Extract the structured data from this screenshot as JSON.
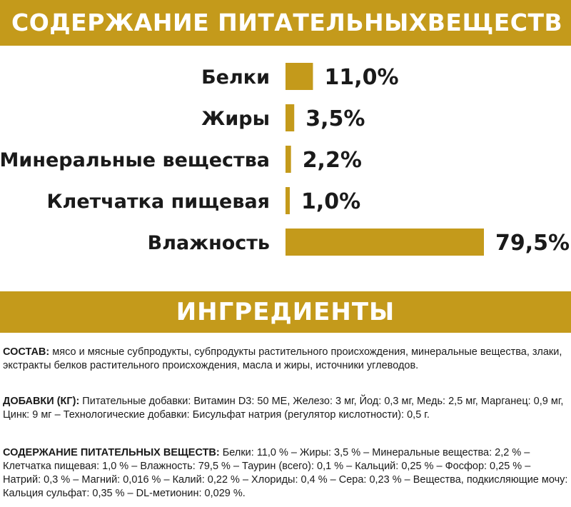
{
  "header": {
    "title": "СОДЕРЖАНИЕ ПИТАТЕЛЬНЫХВЕЩЕСТВ"
  },
  "chart_data": {
    "type": "bar",
    "orientation": "horizontal",
    "categories": [
      "Белки",
      "Жиры",
      "Минеральные вещества",
      "Клетчатка пищевая",
      "Влажность"
    ],
    "values": [
      11.0,
      3.5,
      2.2,
      1.0,
      79.5
    ],
    "value_labels": [
      "11,0%",
      "3,5%",
      "2,2%",
      "1,0%",
      "79,5%"
    ],
    "unit": "%",
    "bar_color": "#c49a1b",
    "title": "",
    "xlabel": "",
    "ylabel": "",
    "grid": false,
    "legend": "none"
  },
  "ingredients": {
    "title": "ИНГРЕДИЕНТЫ",
    "composition": {
      "label": "СОСТАВ:",
      "text": " мясо и мясные субпродукты, субпродукты растительного происхождения, минеральные вещества, злаки, экстракты белков растительного происхождения, масла и жиры, источники углеводов."
    },
    "additives": {
      "label": "ДОБАВКИ (КГ):",
      "text": " Питательные добавки: Витамин D3: 50 МЕ, Железо: 3 мг, Йод: 0,3 мг, Медь: 2,5 мг, Марганец: 0,9 мг, Цинк: 9 мг – Технологические добавки: Бисульфат натрия (регулятор кислотности): 0,5 г."
    },
    "nutrients": {
      "label": "СОДЕРЖАНИЕ ПИТАТЕЛЬНЫХ ВЕЩЕСТВ:",
      "text": " Белки: 11,0 % – Жиры: 3,5 % – Минеральные вещества: 2,2 % – Клетчатка пищевая: 1,0 % – Влажность: 79,5 % – Таурин (всего): 0,1 % – Кальций: 0,25 % – Фосфор: 0,25 % – Натрий: 0,3 % – Магний: 0,016 % – Калий: 0,22 % – Хлориды: 0,4 % – Сера: 0,23 % – Вещества, подкисляющие мочу: Кальция сульфат: 0,35 % – DL-метионин: 0,029 %."
    }
  },
  "colors": {
    "accent": "#c49a1b",
    "text": "#1a1a1a",
    "background": "#ffffff"
  }
}
